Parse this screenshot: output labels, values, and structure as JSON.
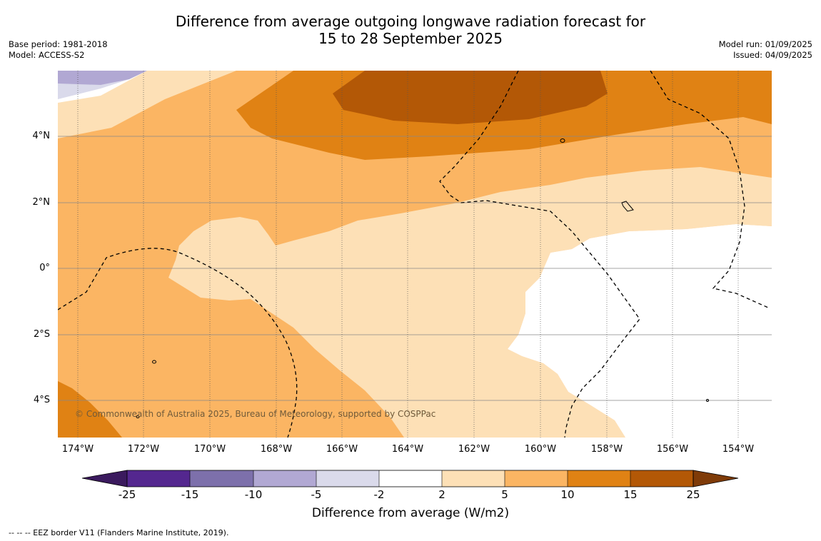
{
  "title_line1": "Difference from average outgoing longwave radiation forecast for",
  "title_line2": "15 to 28 September 2025",
  "base_period": "Base period: 1981-2018",
  "model": "Model: ACCESS-S2",
  "model_run": "Model run: 01/09/2025",
  "issued": "Issued: 04/09/2025",
  "copyright": "© Commonwealth of Australia 2025, Bureau of Meteorology, supported by COSPPac",
  "lat_labels": [
    "4°N",
    "2°N",
    "0°",
    "2°S",
    "4°S"
  ],
  "lon_labels": [
    "174°W",
    "172°W",
    "170°W",
    "168°W",
    "166°W",
    "164°W",
    "162°W",
    "160°W",
    "158°W",
    "156°W",
    "154°W"
  ],
  "colorbar": {
    "ticks": [
      "-25",
      "-15",
      "-10",
      "-5",
      "-2",
      "2",
      "5",
      "10",
      "15",
      "25"
    ],
    "colors": [
      "#3b1a5e",
      "#54278f",
      "#7d70ab",
      "#b1a8d3",
      "#dadaeb",
      "#ffffff",
      "#fde0b6",
      "#fbb563",
      "#e08214",
      "#b35806",
      "#7f3b08"
    ],
    "label": "Difference from average (W/m2)"
  },
  "footnote": "--  --  -- EEZ border V11 (Flanders Marine Institute, 2019)."
}
